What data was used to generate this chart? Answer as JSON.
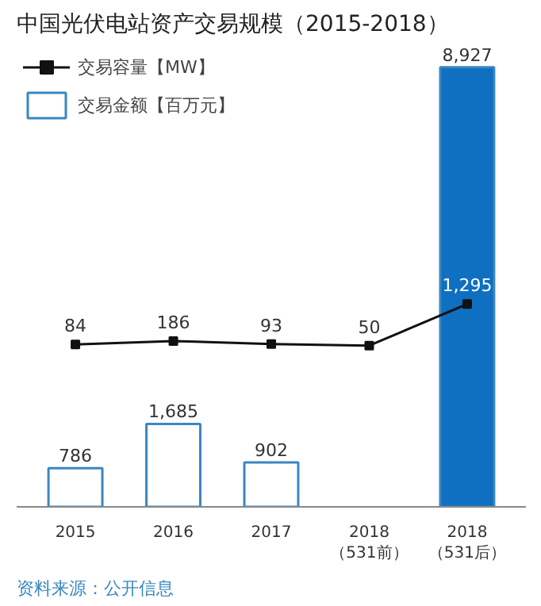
{
  "chart_data": {
    "type": "bar",
    "title": "中国光伏电站资产交易规模（2015-2018）",
    "categories": [
      "2015",
      "2016",
      "2017",
      "2018\n（531前）",
      "2018\n（531后）"
    ],
    "series": [
      {
        "name": "交易金额【百万元】",
        "color": "#3a87c0",
        "colors": [
          "#ffffff",
          "#ffffff",
          "#ffffff",
          "#ffffff",
          "#0f6fc0"
        ],
        "values": [
          786,
          1685,
          902,
          null,
          8927
        ],
        "value_labels": [
          "786",
          "1,685",
          "902",
          null,
          "8,927"
        ]
      },
      {
        "name": "交易容量【MW】",
        "type": "line",
        "axis": "y2",
        "color": "#111111",
        "values": [
          84,
          186,
          93,
          50,
          1295
        ],
        "value_labels": [
          "84",
          "186",
          "93",
          "50",
          "1,295"
        ]
      }
    ],
    "tick_labels": "x",
    "legend": "top left",
    "marker": "square",
    "annotations": [
      "资料来源：公开信息"
    ]
  }
}
